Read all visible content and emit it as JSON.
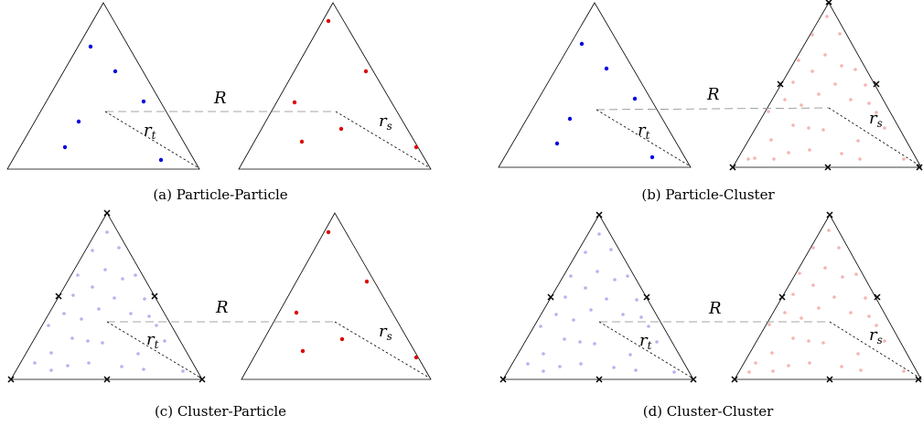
{
  "panels": [
    {
      "id": "a",
      "caption": "(a) Particle-Particle",
      "separation_label": "R",
      "left_radius_label": "r",
      "left_radius_sub": "t",
      "right_radius_label": "r",
      "right_radius_sub": "s",
      "left_type": "particle",
      "right_type": "particle"
    },
    {
      "id": "b",
      "caption": "(b) Particle-Cluster",
      "separation_label": "R",
      "left_radius_label": "r",
      "left_radius_sub": "t",
      "right_radius_label": "r",
      "right_radius_sub": "s",
      "left_type": "particle",
      "right_type": "cluster"
    },
    {
      "id": "c",
      "caption": "(c) Cluster-Particle",
      "separation_label": "R",
      "left_radius_label": "r",
      "left_radius_sub": "t",
      "right_radius_label": "r",
      "right_radius_sub": "s",
      "left_type": "cluster",
      "right_type": "particle"
    },
    {
      "id": "d",
      "caption": "(d) Cluster-Cluster",
      "separation_label": "R",
      "left_radius_label": "r",
      "left_radius_sub": "t",
      "right_radius_label": "r",
      "right_radius_sub": "s",
      "left_type": "cluster",
      "right_type": "cluster"
    }
  ],
  "colors": {
    "target_particle": "#0000dd",
    "source_particle": "#dd0000",
    "target_cluster_point": "#b4b4f0",
    "source_cluster_point": "#f5b4b4",
    "outline": "#000000",
    "separation_line": "#888888"
  }
}
